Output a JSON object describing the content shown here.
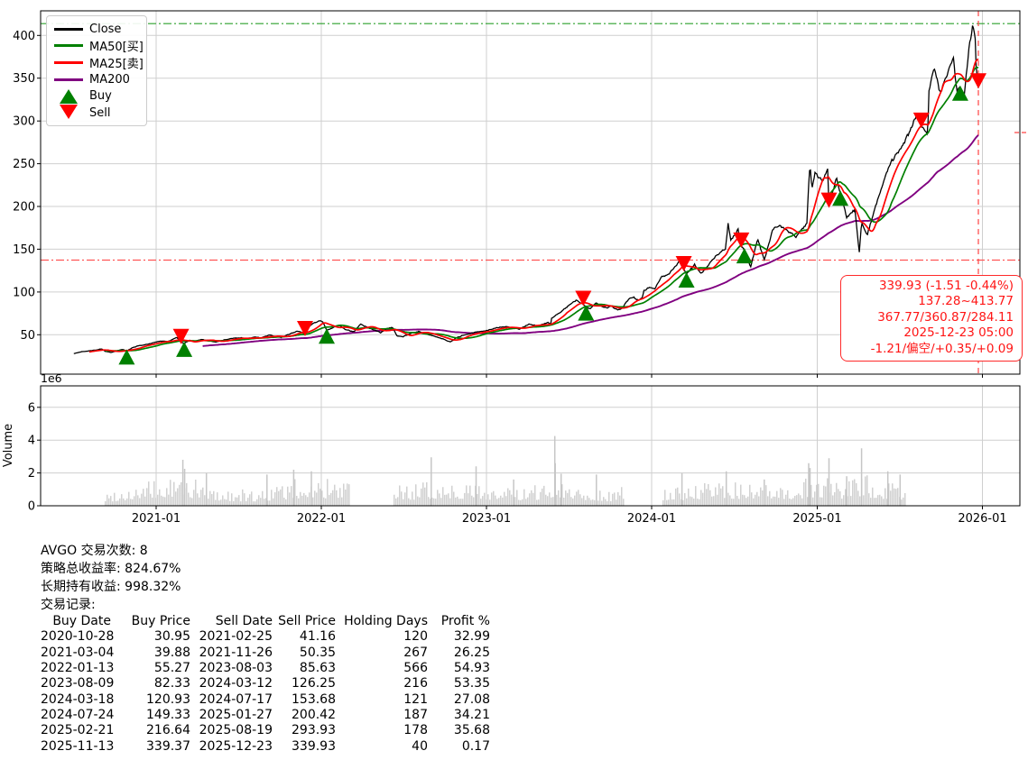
{
  "chart_data": {
    "type": "line",
    "symbol": "AVGO",
    "x_axis": {
      "tick_labels": [
        "2021-01",
        "2022-01",
        "2023-01",
        "2024-01",
        "2025-01",
        "2026-01"
      ],
      "tick_dates": [
        "2021-01-01",
        "2022-01-01",
        "2023-01-01",
        "2024-01-01",
        "2025-01-01",
        "2026-01-01"
      ],
      "range": [
        "2020-04-20",
        "2026-03-25"
      ],
      "grid": true
    },
    "price_axis": {
      "ticks": [
        50,
        100,
        150,
        200,
        250,
        300,
        350,
        400
      ],
      "range": [
        3.9,
        428.8
      ],
      "grid": true
    },
    "volume_axis": {
      "label": "Volume",
      "multiplier_label": "1e6",
      "ticks": [
        0,
        2,
        4,
        6
      ],
      "range": [
        0,
        7.3
      ],
      "grid": true
    },
    "ref_lines": [
      {
        "name": "range-high",
        "value": 413.77,
        "color": "#2ca02c",
        "style": "dashdot"
      },
      {
        "name": "range-low",
        "value": 137.28,
        "color": "#ff5555",
        "style": "dashdot"
      }
    ],
    "crosshair": {
      "date": "2025-12-23",
      "color": "#ff4444",
      "edge_tick_price": 286.5
    },
    "series": [
      {
        "name": "Close",
        "color": "#000000",
        "kind": "price",
        "points": [
          [
            "2020-07-03",
            27.8
          ],
          [
            "2020-07-21",
            30.3
          ],
          [
            "2020-08-07",
            31.2
          ],
          [
            "2020-08-26",
            32.6
          ],
          [
            "2020-09-02",
            33.4
          ],
          [
            "2020-09-11",
            30.6
          ],
          [
            "2020-09-24",
            29.2
          ],
          [
            "2020-10-12",
            32.2
          ],
          [
            "2020-10-21",
            32.6
          ],
          [
            "2020-10-28",
            31.0
          ],
          [
            "2020-11-09",
            34.6
          ],
          [
            "2020-11-24",
            37.2
          ],
          [
            "2020-12-10",
            38.6
          ],
          [
            "2020-12-29",
            41.2
          ],
          [
            "2021-01-12",
            42.6
          ],
          [
            "2021-01-27",
            41.8
          ],
          [
            "2021-02-09",
            45.4
          ],
          [
            "2021-02-16",
            46.9
          ],
          [
            "2021-02-25",
            41.2
          ],
          [
            "2021-03-04",
            39.9
          ],
          [
            "2021-03-16",
            43.6
          ],
          [
            "2021-03-25",
            41.6
          ],
          [
            "2021-04-09",
            44.6
          ],
          [
            "2021-04-20",
            44.0
          ],
          [
            "2021-05-04",
            42.2
          ],
          [
            "2021-05-13",
            41.4
          ],
          [
            "2021-06-02",
            44.2
          ],
          [
            "2021-06-18",
            45.6
          ],
          [
            "2021-07-09",
            46.6
          ],
          [
            "2021-07-19",
            44.9
          ],
          [
            "2021-08-06",
            47.4
          ],
          [
            "2021-08-20",
            46.2
          ],
          [
            "2021-09-09",
            49.6
          ],
          [
            "2021-09-20",
            48.0
          ],
          [
            "2021-10-04",
            46.9
          ],
          [
            "2021-10-15",
            49.2
          ],
          [
            "2021-11-08",
            54.2
          ],
          [
            "2021-11-18",
            53.2
          ],
          [
            "2021-11-26",
            50.4
          ],
          [
            "2021-12-08",
            61.6
          ],
          [
            "2021-12-28",
            66.4
          ],
          [
            "2022-01-04",
            65.2
          ],
          [
            "2022-01-13",
            55.3
          ],
          [
            "2022-01-28",
            58.6
          ],
          [
            "2022-02-10",
            61.2
          ],
          [
            "2022-02-24",
            55.8
          ],
          [
            "2022-03-14",
            53.6
          ],
          [
            "2022-03-29",
            62.4
          ],
          [
            "2022-04-14",
            58.2
          ],
          [
            "2022-04-29",
            55.4
          ],
          [
            "2022-05-12",
            52.4
          ],
          [
            "2022-05-27",
            57.6
          ],
          [
            "2022-06-08",
            58.2
          ],
          [
            "2022-06-17",
            48.6
          ],
          [
            "2022-07-01",
            47.8
          ],
          [
            "2022-07-22",
            52.4
          ],
          [
            "2022-08-04",
            53.8
          ],
          [
            "2022-08-26",
            50.2
          ],
          [
            "2022-09-13",
            47.4
          ],
          [
            "2022-09-30",
            44.4
          ],
          [
            "2022-10-13",
            41.6
          ],
          [
            "2022-10-26",
            46.2
          ],
          [
            "2022-11-11",
            49.6
          ],
          [
            "2022-11-23",
            51.4
          ],
          [
            "2022-12-07",
            52.6
          ],
          [
            "2022-12-28",
            54.6
          ],
          [
            "2023-01-05",
            55.4
          ],
          [
            "2023-01-26",
            58.4
          ],
          [
            "2023-02-14",
            59.2
          ],
          [
            "2023-03-13",
            56.4
          ],
          [
            "2023-04-05",
            62.2
          ],
          [
            "2023-04-25",
            60.4
          ],
          [
            "2023-05-17",
            64.2
          ],
          [
            "2023-05-24",
            62.4
          ],
          [
            "2023-05-25",
            69.2
          ],
          [
            "2023-06-02",
            72.6
          ],
          [
            "2023-06-14",
            76.4
          ],
          [
            "2023-06-26",
            81.6
          ],
          [
            "2023-07-12",
            88.4
          ],
          [
            "2023-07-19",
            90.2
          ],
          [
            "2023-08-03",
            85.6
          ],
          [
            "2023-08-09",
            82.3
          ],
          [
            "2023-08-18",
            80.4
          ],
          [
            "2023-09-01",
            87.6
          ],
          [
            "2023-09-12",
            83.2
          ],
          [
            "2023-09-26",
            81.2
          ],
          [
            "2023-10-03",
            84.2
          ],
          [
            "2023-10-18",
            78.4
          ],
          [
            "2023-10-27",
            80.6
          ],
          [
            "2023-11-13",
            92.6
          ],
          [
            "2023-11-22",
            93.8
          ],
          [
            "2023-12-04",
            90.2
          ],
          [
            "2023-12-12",
            93.6
          ],
          [
            "2023-12-14",
            101.4
          ],
          [
            "2023-12-27",
            105.6
          ],
          [
            "2024-01-08",
            104.2
          ],
          [
            "2024-01-23",
            118.2
          ],
          [
            "2024-02-05",
            119.6
          ],
          [
            "2024-02-23",
            130.2
          ],
          [
            "2024-03-08",
            140.6
          ],
          [
            "2024-03-12",
            126.3
          ],
          [
            "2024-03-18",
            120.9
          ],
          [
            "2024-04-05",
            131.6
          ],
          [
            "2024-04-19",
            121.4
          ],
          [
            "2024-05-03",
            129.4
          ],
          [
            "2024-05-21",
            141.6
          ],
          [
            "2024-06-12",
            150.2
          ],
          [
            "2024-06-18",
            180.0
          ],
          [
            "2024-06-24",
            160.4
          ],
          [
            "2024-07-10",
            172.6
          ],
          [
            "2024-07-17",
            153.7
          ],
          [
            "2024-07-24",
            149.3
          ],
          [
            "2024-08-02",
            135.6
          ],
          [
            "2024-08-07",
            129.8
          ],
          [
            "2024-08-22",
            162.2
          ],
          [
            "2024-09-06",
            137.2
          ],
          [
            "2024-09-24",
            172.4
          ],
          [
            "2024-10-09",
            178.6
          ],
          [
            "2024-10-29",
            171.4
          ],
          [
            "2024-11-15",
            164.2
          ],
          [
            "2024-12-09",
            180.4
          ],
          [
            "2024-12-13",
            224.8
          ],
          [
            "2024-12-16",
            250.0
          ],
          [
            "2024-12-20",
            219.4
          ],
          [
            "2024-12-27",
            239.2
          ],
          [
            "2025-01-14",
            229.6
          ],
          [
            "2025-01-24",
            244.7
          ],
          [
            "2025-01-27",
            200.4
          ],
          [
            "2025-02-12",
            233.2
          ],
          [
            "2025-02-21",
            216.6
          ],
          [
            "2025-03-07",
            187.4
          ],
          [
            "2025-03-25",
            196.4
          ],
          [
            "2025-04-04",
            146.3
          ],
          [
            "2025-04-09",
            181.2
          ],
          [
            "2025-04-21",
            166.4
          ],
          [
            "2025-05-09",
            198.6
          ],
          [
            "2025-05-28",
            230.2
          ],
          [
            "2025-06-13",
            252.4
          ],
          [
            "2025-06-30",
            264.6
          ],
          [
            "2025-07-15",
            277.4
          ],
          [
            "2025-07-31",
            295.6
          ],
          [
            "2025-08-08",
            306.2
          ],
          [
            "2025-08-19",
            293.9
          ],
          [
            "2025-09-02",
            283.6
          ],
          [
            "2025-09-05",
            334.2
          ],
          [
            "2025-09-16",
            362.4
          ],
          [
            "2025-09-30",
            330.6
          ],
          [
            "2025-10-08",
            345.2
          ],
          [
            "2025-10-29",
            375.4
          ],
          [
            "2025-11-05",
            336.4
          ],
          [
            "2025-11-13",
            339.4
          ],
          [
            "2025-11-21",
            324.6
          ],
          [
            "2025-12-02",
            385.2
          ],
          [
            "2025-12-10",
            412.4
          ],
          [
            "2025-12-16",
            397.2
          ],
          [
            "2025-12-18",
            365.4
          ],
          [
            "2025-12-23",
            339.9
          ]
        ]
      },
      {
        "name": "MA50[买]",
        "color": "#008000",
        "kind": "sma",
        "window_days": 70
      },
      {
        "name": "MA25[卖]",
        "color": "#ff0000",
        "kind": "sma",
        "window_days": 35
      },
      {
        "name": "MA200",
        "color": "#800080",
        "kind": "sma",
        "window_days": 285
      }
    ],
    "volume": {
      "color": "#c6c6c6",
      "range": [
        "2020-09-11",
        "2025-07-17"
      ],
      "gaps": [
        [
          "2022-03-06",
          "2022-06-08"
        ],
        [
          "2023-11-02",
          "2024-01-23"
        ]
      ],
      "envelope": [
        [
          "2020-09-11",
          0.55
        ],
        [
          "2020-10-15",
          0.75
        ],
        [
          "2020-12-01",
          0.95
        ],
        [
          "2021-01-15",
          1.05
        ],
        [
          "2021-03-01",
          1.35
        ],
        [
          "2021-04-01",
          1.0
        ],
        [
          "2021-06-01",
          0.7
        ],
        [
          "2021-08-01",
          0.6
        ],
        [
          "2021-10-01",
          0.85
        ],
        [
          "2021-12-01",
          1.2
        ],
        [
          "2022-01-15",
          1.05
        ],
        [
          "2022-03-05",
          0.9
        ],
        [
          "2022-06-10",
          0.95
        ],
        [
          "2022-08-01",
          0.85
        ],
        [
          "2022-10-01",
          1.1
        ],
        [
          "2022-12-01",
          0.95
        ],
        [
          "2023-02-01",
          0.85
        ],
        [
          "2023-04-01",
          0.65
        ],
        [
          "2023-06-05",
          1.25
        ],
        [
          "2023-08-01",
          0.85
        ],
        [
          "2023-10-01",
          0.65
        ],
        [
          "2023-11-01",
          0.75
        ],
        [
          "2024-01-25",
          0.75
        ],
        [
          "2024-04-01",
          0.85
        ],
        [
          "2024-06-01",
          1.05
        ],
        [
          "2024-08-01",
          0.95
        ],
        [
          "2024-10-01",
          0.75
        ],
        [
          "2024-12-10",
          1.15
        ],
        [
          "2025-01-20",
          1.2
        ],
        [
          "2025-03-01",
          1.0
        ],
        [
          "2025-04-10",
          1.3
        ],
        [
          "2025-06-01",
          0.95
        ],
        [
          "2025-07-17",
          0.85
        ]
      ],
      "spikes": [
        [
          "2021-03-01",
          2.8
        ],
        [
          "2021-03-05",
          2.25
        ],
        [
          "2021-04-22",
          2.0
        ],
        [
          "2021-09-03",
          1.9
        ],
        [
          "2021-11-01",
          2.2
        ],
        [
          "2021-12-10",
          2.1
        ],
        [
          "2022-09-01",
          2.95
        ],
        [
          "2022-12-09",
          2.4
        ],
        [
          "2023-03-02",
          1.6
        ],
        [
          "2023-06-01",
          4.25
        ],
        [
          "2023-06-02",
          2.6
        ],
        [
          "2023-06-15",
          1.95
        ],
        [
          "2023-09-01",
          1.9
        ],
        [
          "2024-03-08",
          2.0
        ],
        [
          "2024-06-14",
          2.1
        ],
        [
          "2024-09-06",
          1.6
        ],
        [
          "2024-12-13",
          2.6
        ],
        [
          "2024-12-16",
          2.3
        ],
        [
          "2025-01-27",
          2.9
        ],
        [
          "2025-03-07",
          1.8
        ],
        [
          "2025-04-09",
          3.5
        ],
        [
          "2025-06-06",
          2.1
        ],
        [
          "2025-07-03",
          1.9
        ]
      ]
    },
    "markers": {
      "buy_color": "#008000",
      "sell_color": "#ff0000"
    }
  },
  "legend": {
    "items": [
      {
        "label": "Close",
        "color": "#000000",
        "marker": "line"
      },
      {
        "label": "MA50[买]",
        "color": "#008000",
        "marker": "line"
      },
      {
        "label": "MA25[卖]",
        "color": "#ff0000",
        "marker": "line"
      },
      {
        "label": "MA200",
        "color": "#800080",
        "marker": "line"
      },
      {
        "label": "Buy",
        "color": "#008000",
        "marker": "triangle-up"
      },
      {
        "label": "Sell",
        "color": "#ff0000",
        "marker": "triangle-down"
      }
    ]
  },
  "annotation": {
    "color": "#ff1515",
    "lines": [
      "339.93 (-1.51 -0.44%)",
      "137.28~413.77",
      "367.77/360.87/284.11",
      "2025-12-23 05:00",
      "-1.21/偏空/+0.35/+0.09"
    ]
  },
  "summary": {
    "trades_count_line": "AVGO 交易次数: 8",
    "strategy_return_line": "策略总收益率: 824.67%",
    "buy_hold_return_line": "长期持有收益: 998.32%",
    "records_label": "交易记录:"
  },
  "trade_table": {
    "headers": [
      "Buy Date",
      "Buy Price",
      "Sell Date",
      "Sell Price",
      "Holding Days",
      "Profit %"
    ],
    "rows": [
      [
        "2020-10-28",
        "30.95",
        "2021-02-25",
        "41.16",
        "120",
        "32.99"
      ],
      [
        "2021-03-04",
        "39.88",
        "2021-11-26",
        "50.35",
        "267",
        "26.25"
      ],
      [
        "2022-01-13",
        "55.27",
        "2023-08-03",
        "85.63",
        "566",
        "54.93"
      ],
      [
        "2023-08-09",
        "82.33",
        "2024-03-12",
        "126.25",
        "216",
        "53.35"
      ],
      [
        "2024-03-18",
        "120.93",
        "2024-07-17",
        "153.68",
        "121",
        "27.08"
      ],
      [
        "2024-07-24",
        "149.33",
        "2025-01-27",
        "200.42",
        "187",
        "34.21"
      ],
      [
        "2025-02-21",
        "216.64",
        "2025-08-19",
        "293.93",
        "178",
        "35.68"
      ],
      [
        "2025-11-13",
        "339.37",
        "2025-12-23",
        "339.93",
        "40",
        "0.17"
      ]
    ]
  }
}
